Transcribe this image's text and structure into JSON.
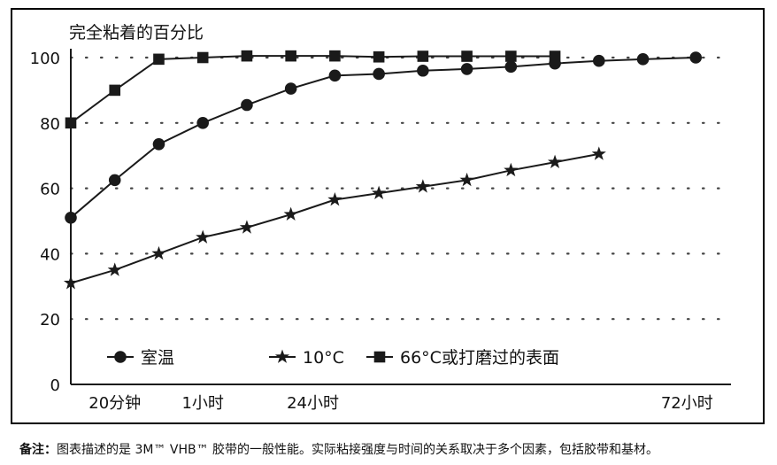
{
  "chart_data": {
    "type": "line",
    "title": "",
    "ylabel": "完全粘着的百分比",
    "xlabel": "",
    "ylim": [
      0,
      100
    ],
    "yticks": [
      0,
      20,
      40,
      60,
      80,
      100
    ],
    "xlim": [
      0,
      15
    ],
    "x_tick_labels": [
      {
        "x": 1,
        "label": "20分钟"
      },
      {
        "x": 3,
        "label": "1小时"
      },
      {
        "x": 5.5,
        "label": "24小时"
      },
      {
        "x": 14,
        "label": "72小时"
      }
    ],
    "grid": "horizontal-dotted",
    "legend_position": "bottom-inside",
    "series": [
      {
        "name": "室温",
        "marker": "circle",
        "points": [
          [
            0,
            51
          ],
          [
            1,
            62.5
          ],
          [
            2,
            73.5
          ],
          [
            3,
            80
          ],
          [
            4,
            85.5
          ],
          [
            5,
            90.5
          ],
          [
            6,
            94.5
          ],
          [
            7,
            95
          ],
          [
            8,
            96
          ],
          [
            9,
            96.5
          ],
          [
            10,
            97.2
          ],
          [
            11,
            98.2
          ],
          [
            12,
            99
          ],
          [
            13,
            99.5
          ],
          [
            14.2,
            100
          ]
        ]
      },
      {
        "name": "10°C",
        "marker": "star",
        "points": [
          [
            0,
            31
          ],
          [
            1,
            35
          ],
          [
            2,
            40
          ],
          [
            3,
            45
          ],
          [
            4,
            48
          ],
          [
            5,
            52
          ],
          [
            6,
            56.5
          ],
          [
            7,
            58.5
          ],
          [
            8,
            60.5
          ],
          [
            9,
            62.5
          ],
          [
            10,
            65.5
          ],
          [
            11,
            68
          ],
          [
            12,
            70.5
          ]
        ]
      },
      {
        "name": "66°C或打磨过的表面",
        "marker": "square",
        "points": [
          [
            0,
            80
          ],
          [
            1,
            90
          ],
          [
            2,
            99.5
          ],
          [
            3,
            100
          ],
          [
            4,
            100.5
          ],
          [
            5,
            100.5
          ],
          [
            6,
            100.5
          ],
          [
            7,
            100.2
          ],
          [
            8,
            100.4
          ],
          [
            9,
            100.4
          ],
          [
            10,
            100.4
          ],
          [
            11,
            100.4
          ]
        ]
      }
    ],
    "colors": {
      "line": "#1a1a1a",
      "grid": "#444444"
    }
  },
  "footnote": {
    "label": "备注：",
    "text": "图表描述的是 3M™ VHB™ 胶带的一般性能。实际粘接强度与时间的关系取决于多个因素，包括胶带和基材。"
  }
}
